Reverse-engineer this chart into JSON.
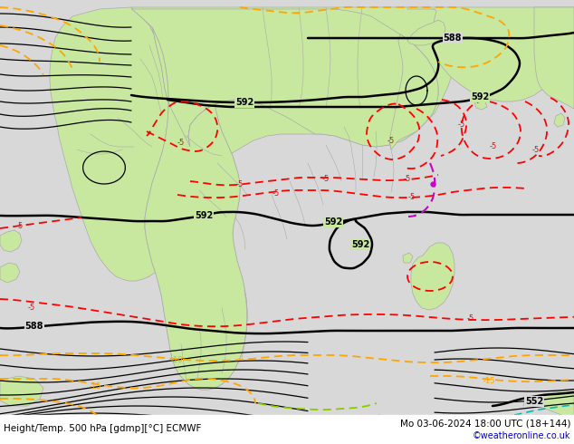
{
  "title_left": "Height/Temp. 500 hPa [gdmp][°C] ECMWF",
  "title_right": "Mo 03-06-2024 18:00 UTC (18+144)",
  "credit": "©weatheronline.co.uk",
  "bg_color": "#d8d8d8",
  "land_color": "#c8e8a0",
  "border_color": "#aaaaaa",
  "sea_color": "#d8d8d8",
  "white_color": "#ffffff",
  "figsize": [
    6.34,
    4.9
  ],
  "dpi": 100,
  "credit_color": "#0000cc",
  "black_lw_bold": 1.8,
  "black_lw_thin": 0.9,
  "red_lw": 1.3,
  "orange_lw": 1.3,
  "green_lw": 1.3,
  "label_fs": 7
}
